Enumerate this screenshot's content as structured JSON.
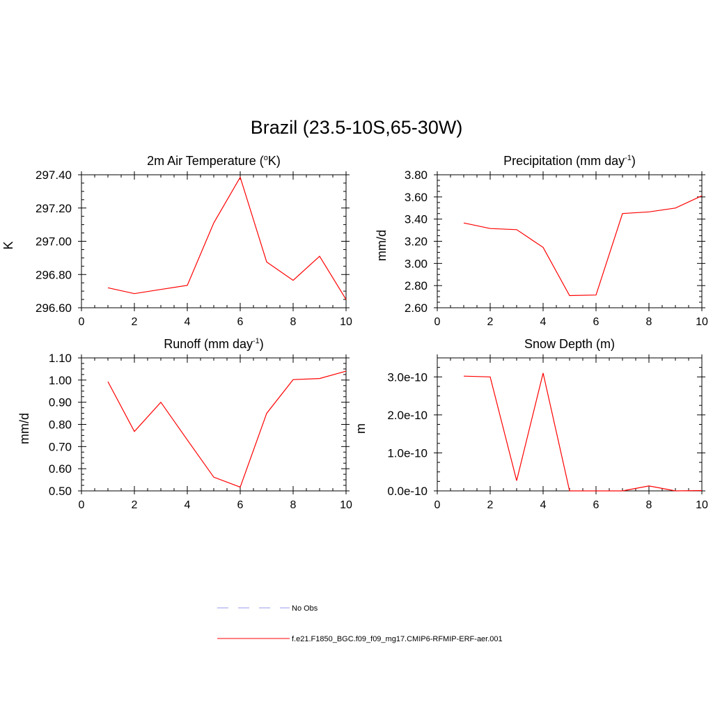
{
  "figure": {
    "title": "Brazil (23.5-10S,65-30W)"
  },
  "colors": {
    "model": "#ff0000",
    "obs": "#9999ee",
    "axis": "#000000"
  },
  "legend": {
    "items": [
      {
        "label": "No Obs",
        "style": "dashed",
        "color": "#9999ee"
      },
      {
        "label": "f.e21.F1850_BGC.f09_f09_mg17.CMIP6-RFMIP-ERF-aer.001",
        "style": "solid",
        "color": "#ff0000"
      }
    ]
  },
  "chart_data": [
    {
      "type": "line",
      "title_main": "2m Air Temperature (",
      "title_sup": "o",
      "title_rest": "K)",
      "ylabel": "K",
      "xlim": [
        0,
        10
      ],
      "ylim": [
        296.6,
        297.4
      ],
      "xticks": [
        0,
        2,
        4,
        6,
        8,
        10
      ],
      "xtick_labels": [
        "0",
        "2",
        "4",
        "6",
        "8",
        "10"
      ],
      "yticks": [
        296.6,
        296.8,
        297.0,
        297.2,
        297.4
      ],
      "ytick_labels": [
        "296.60",
        "296.80",
        "297.00",
        "297.20",
        "297.40"
      ],
      "series": [
        {
          "x": [
            1,
            2,
            3,
            4,
            5,
            6,
            7,
            8,
            9,
            10
          ],
          "values": [
            296.72,
            296.685,
            296.71,
            296.735,
            297.11,
            297.385,
            296.875,
            296.765,
            296.91,
            296.65
          ]
        }
      ]
    },
    {
      "type": "line",
      "title_main": "Precipitation (mm day",
      "title_sup": "-1",
      "title_rest": ")",
      "ylabel": "mm/d",
      "xlim": [
        0,
        10
      ],
      "ylim": [
        2.6,
        3.8
      ],
      "xticks": [
        0,
        2,
        4,
        6,
        8,
        10
      ],
      "xtick_labels": [
        "0",
        "2",
        "4",
        "6",
        "8",
        "10"
      ],
      "yticks": [
        2.6,
        2.8,
        3.0,
        3.2,
        3.4,
        3.6,
        3.8
      ],
      "ytick_labels": [
        "2.60",
        "2.80",
        "3.00",
        "3.20",
        "3.40",
        "3.60",
        "3.80"
      ],
      "series": [
        {
          "x": [
            1,
            2,
            3,
            4,
            5,
            6,
            7,
            8,
            9,
            10
          ],
          "values": [
            3.365,
            3.315,
            3.305,
            3.145,
            2.71,
            2.715,
            3.45,
            3.465,
            3.5,
            3.61
          ]
        }
      ]
    },
    {
      "type": "line",
      "title_main": "Runoff (mm day",
      "title_sup": "-1",
      "title_rest": ")",
      "ylabel": "mm/d",
      "xlim": [
        0,
        10
      ],
      "ylim": [
        0.5,
        1.1
      ],
      "xticks": [
        0,
        2,
        4,
        6,
        8,
        10
      ],
      "xtick_labels": [
        "0",
        "2",
        "4",
        "6",
        "8",
        "10"
      ],
      "yticks": [
        0.5,
        0.6,
        0.7,
        0.8,
        0.9,
        1.0,
        1.1
      ],
      "ytick_labels": [
        "0.50",
        "0.60",
        "0.70",
        "0.80",
        "0.90",
        "1.00",
        "1.10"
      ],
      "series": [
        {
          "x": [
            1,
            2,
            3,
            4,
            5,
            6,
            7,
            8,
            9,
            10
          ],
          "values": [
            0.993,
            0.768,
            0.9,
            0.73,
            0.562,
            0.517,
            0.85,
            1.002,
            1.007,
            1.04
          ]
        }
      ]
    },
    {
      "type": "line",
      "title_main": "Snow Depth (m)",
      "title_sup": "",
      "title_rest": "",
      "ylabel": "m",
      "xlim": [
        0,
        10
      ],
      "ylim": [
        0,
        3.5e-10
      ],
      "xticks": [
        0,
        2,
        4,
        6,
        8,
        10
      ],
      "xtick_labels": [
        "0",
        "2",
        "4",
        "6",
        "8",
        "10"
      ],
      "yticks": [
        0,
        1e-10,
        2e-10,
        3e-10
      ],
      "ytick_labels": [
        "0.0e-10",
        "1.0e-10",
        "2.0e-10",
        "3.0e-10"
      ],
      "series": [
        {
          "x": [
            1,
            2,
            3,
            4,
            5,
            6,
            7,
            8,
            9,
            10
          ],
          "values": [
            3.02e-10,
            3e-10,
            2.7e-11,
            3.1e-10,
            0,
            0,
            0,
            1.3e-11,
            0,
            1e-12
          ]
        }
      ]
    }
  ]
}
